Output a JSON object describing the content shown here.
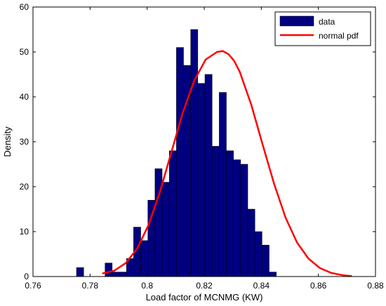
{
  "chart_data": {
    "type": "bar",
    "xlabel": "Load factor of MCNMG (KW)",
    "ylabel": "Density",
    "xlim": [
      0.76,
      0.88
    ],
    "ylim": [
      0,
      60
    ],
    "xticks": [
      "0.76",
      "0.78",
      "0.8",
      "0.82",
      "0.84",
      "0.86",
      "0.88"
    ],
    "yticks": [
      "0",
      "10",
      "20",
      "30",
      "40",
      "50",
      "60"
    ],
    "xtick_values": [
      0.76,
      0.78,
      0.8,
      0.82,
      0.84,
      0.86,
      0.88
    ],
    "ytick_values": [
      0,
      10,
      20,
      30,
      40,
      50,
      60
    ],
    "grid": false,
    "legend_position": "top-right",
    "bin_width": 0.0025,
    "series": [
      {
        "name": "data",
        "type": "bar",
        "color": "#000080",
        "x": [
          0.7765,
          0.779,
          0.7815,
          0.784,
          0.7865,
          0.789,
          0.7915,
          0.794,
          0.7965,
          0.799,
          0.8015,
          0.804,
          0.8065,
          0.809,
          0.8115,
          0.814,
          0.8165,
          0.819,
          0.8215,
          0.824,
          0.8265,
          0.829,
          0.8315,
          0.834,
          0.8365,
          0.839,
          0.8415,
          0.844,
          0.8465,
          0.849,
          0.8515,
          0.854,
          0.8565
        ],
        "values": [
          2,
          0,
          0,
          0,
          3,
          1,
          1,
          4,
          11,
          8,
          17,
          24,
          21,
          28,
          51,
          47,
          55,
          43,
          45,
          29,
          41,
          28,
          26,
          25,
          15,
          10,
          7,
          1,
          0,
          0,
          0,
          0,
          0
        ]
      },
      {
        "name": "normal pdf",
        "type": "line",
        "color": "#ff0000",
        "x": [
          0.7845,
          0.7885,
          0.7925,
          0.7965,
          0.8005,
          0.8045,
          0.8085,
          0.8125,
          0.8165,
          0.8205,
          0.8245,
          0.8265,
          0.8285,
          0.8305,
          0.8325,
          0.8365,
          0.8405,
          0.8445,
          0.8485,
          0.8525,
          0.8565,
          0.8605,
          0.8645,
          0.8685,
          0.8715
        ],
        "values": [
          0.7,
          1.3,
          3.0,
          6.2,
          11.5,
          18.9,
          27.7,
          36.5,
          43.6,
          48.3,
          50.0,
          50.2,
          49.5,
          48.0,
          45.5,
          38.2,
          29.3,
          20.6,
          13.1,
          7.6,
          4.0,
          1.9,
          0.8,
          0.3,
          0.1
        ]
      }
    ]
  }
}
